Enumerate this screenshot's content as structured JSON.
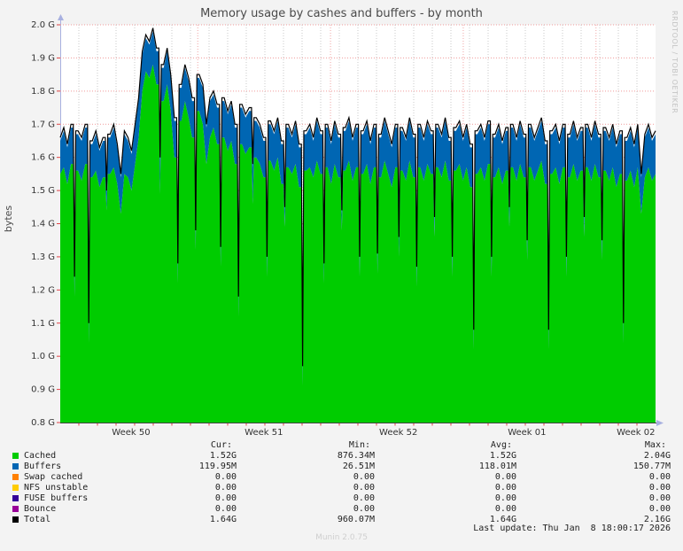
{
  "title": "Memory usage by cashes and buffers - by month",
  "y_axis_label": "bytes",
  "watermark": "RRDTOOL / TOBI OETIKER",
  "footer": "Munin 2.0.75",
  "last_update": "Last update: Thu Jan  8 18:00:17 2026",
  "colors": {
    "background": "#f3f3f3",
    "plot_background": "#ffffff",
    "grid_major_h": "#f09999",
    "grid_minor_v": "#c9c9c9",
    "grid_week_v": "#f0a5a5",
    "axis_tick_red": "#dd4444",
    "axis_bottom": "#444444",
    "axis_arrow": "#a8b0e0",
    "text": "#333333"
  },
  "chart_data": {
    "type": "area",
    "stacked": true,
    "title": "Memory usage by cashes and buffers - by month",
    "xlabel": "",
    "ylabel": "bytes",
    "ylim": [
      0.8,
      2.0
    ],
    "y_unit": "G",
    "y_tick_step": 0.1,
    "y_ticks": [
      "2.0 G",
      "1.9 G",
      "1.8 G",
      "1.7 G",
      "1.6 G",
      "1.5 G",
      "1.4 G",
      "1.3 G",
      "1.2 G",
      "1.1 G",
      "1.0 G",
      "0.9 G",
      "0.8 G"
    ],
    "x_tick_labels": [
      "Week 50",
      "Week 51",
      "Week 52",
      "Week 01",
      "Week 02"
    ],
    "x_tick_positions": [
      0.119,
      0.342,
      0.568,
      0.784,
      0.967
    ],
    "week_grid_positions": [
      0.231,
      0.454,
      0.677,
      0.9
    ],
    "day_divisions": 32,
    "grid": true,
    "legend_position": "bottom",
    "series": [
      {
        "name": "Cached",
        "color": "#00CC00",
        "render": "area",
        "values": [
          1.55,
          1.57,
          1.52,
          1.58,
          1.18,
          1.56,
          1.53,
          1.58,
          1.04,
          1.54,
          1.56,
          1.51,
          1.54,
          1.44,
          1.55,
          1.57,
          1.52,
          1.43,
          1.55,
          1.54,
          1.5,
          1.58,
          1.66,
          1.8,
          1.86,
          1.84,
          1.88,
          1.82,
          1.49,
          1.77,
          1.82,
          1.74,
          1.6,
          1.22,
          1.71,
          1.77,
          1.72,
          1.66,
          1.32,
          1.74,
          1.7,
          1.58,
          1.66,
          1.69,
          1.64,
          1.27,
          1.66,
          1.62,
          1.65,
          1.58,
          1.12,
          1.64,
          1.61,
          1.63,
          1.46,
          1.6,
          1.58,
          1.54,
          1.24,
          1.59,
          1.56,
          1.6,
          1.52,
          1.39,
          1.57,
          1.55,
          1.58,
          1.51,
          0.91,
          1.56,
          1.57,
          1.54,
          1.59,
          1.55,
          1.22,
          1.57,
          1.52,
          1.58,
          1.54,
          1.38,
          1.56,
          1.59,
          1.53,
          1.57,
          1.24,
          1.55,
          1.58,
          1.52,
          1.57,
          1.25,
          1.54,
          1.59,
          1.55,
          1.51,
          1.57,
          1.3,
          1.56,
          1.53,
          1.59,
          1.54,
          1.21,
          1.57,
          1.53,
          1.58,
          1.55,
          1.36,
          1.57,
          1.54,
          1.59,
          1.53,
          1.24,
          1.56,
          1.58,
          1.53,
          1.57,
          1.51,
          1.02,
          1.55,
          1.57,
          1.53,
          1.58,
          1.24,
          1.54,
          1.57,
          1.52,
          1.56,
          1.39,
          1.57,
          1.53,
          1.58,
          1.54,
          1.29,
          1.57,
          1.53,
          1.56,
          1.59,
          1.52,
          1.02,
          1.55,
          1.57,
          1.52,
          1.57,
          1.24,
          1.54,
          1.58,
          1.53,
          1.56,
          1.36,
          1.57,
          1.53,
          1.58,
          1.54,
          1.29,
          1.56,
          1.53,
          1.57,
          1.51,
          1.55,
          1.04,
          1.53,
          1.56,
          1.51,
          1.57,
          1.43,
          1.54,
          1.57,
          1.53,
          1.55
        ]
      },
      {
        "name": "Buffers",
        "color": "#0066B3",
        "render": "area",
        "values": [
          0.1,
          0.11,
          0.11,
          0.11,
          0.05,
          0.11,
          0.12,
          0.11,
          0.05,
          0.1,
          0.11,
          0.11,
          0.11,
          0.05,
          0.11,
          0.12,
          0.11,
          0.11,
          0.12,
          0.11,
          0.11,
          0.11,
          0.11,
          0.11,
          0.1,
          0.1,
          0.1,
          0.1,
          0.1,
          0.1,
          0.1,
          0.1,
          0.11,
          0.05,
          0.1,
          0.1,
          0.11,
          0.11,
          0.05,
          0.1,
          0.11,
          0.11,
          0.11,
          0.1,
          0.11,
          0.05,
          0.11,
          0.11,
          0.11,
          0.11,
          0.05,
          0.11,
          0.11,
          0.11,
          0.11,
          0.11,
          0.11,
          0.11,
          0.05,
          0.11,
          0.11,
          0.11,
          0.12,
          0.05,
          0.12,
          0.11,
          0.12,
          0.12,
          0.05,
          0.11,
          0.12,
          0.11,
          0.12,
          0.12,
          0.05,
          0.12,
          0.12,
          0.12,
          0.12,
          0.05,
          0.12,
          0.12,
          0.12,
          0.12,
          0.05,
          0.12,
          0.12,
          0.12,
          0.12,
          0.05,
          0.12,
          0.12,
          0.12,
          0.12,
          0.12,
          0.05,
          0.12,
          0.12,
          0.12,
          0.12,
          0.05,
          0.12,
          0.12,
          0.12,
          0.12,
          0.05,
          0.12,
          0.12,
          0.12,
          0.12,
          0.05,
          0.12,
          0.12,
          0.12,
          0.12,
          0.12,
          0.05,
          0.12,
          0.12,
          0.12,
          0.12,
          0.05,
          0.12,
          0.12,
          0.12,
          0.12,
          0.05,
          0.12,
          0.12,
          0.12,
          0.12,
          0.05,
          0.12,
          0.12,
          0.12,
          0.12,
          0.12,
          0.05,
          0.12,
          0.12,
          0.12,
          0.12,
          0.05,
          0.12,
          0.12,
          0.12,
          0.12,
          0.05,
          0.12,
          0.12,
          0.12,
          0.12,
          0.05,
          0.12,
          0.12,
          0.12,
          0.12,
          0.12,
          0.05,
          0.12,
          0.12,
          0.12,
          0.12,
          0.11,
          0.12,
          0.12,
          0.12,
          0.12
        ]
      },
      {
        "name": "Swap cached",
        "color": "#FF8000",
        "render": "area",
        "constant": 0.0
      },
      {
        "name": "NFS unstable",
        "color": "#FFCC00",
        "render": "area",
        "constant": 0.0
      },
      {
        "name": "FUSE buffers",
        "color": "#330099",
        "render": "area",
        "constant": 0.0
      },
      {
        "name": "Bounce",
        "color": "#990099",
        "render": "area",
        "constant": 0.0
      },
      {
        "name": "Total",
        "color": "#000000",
        "render": "line",
        "values": [
          1.66,
          1.69,
          1.64,
          1.7,
          1.24,
          1.68,
          1.66,
          1.7,
          1.1,
          1.65,
          1.68,
          1.63,
          1.66,
          1.5,
          1.67,
          1.7,
          1.64,
          1.55,
          1.68,
          1.66,
          1.62,
          1.7,
          1.78,
          1.92,
          1.97,
          1.95,
          1.99,
          1.93,
          1.6,
          1.88,
          1.93,
          1.85,
          1.72,
          1.28,
          1.82,
          1.88,
          1.84,
          1.78,
          1.38,
          1.85,
          1.82,
          1.7,
          1.78,
          1.8,
          1.76,
          1.33,
          1.78,
          1.74,
          1.77,
          1.7,
          1.18,
          1.76,
          1.73,
          1.75,
          1.58,
          1.72,
          1.7,
          1.66,
          1.3,
          1.71,
          1.68,
          1.72,
          1.65,
          1.45,
          1.7,
          1.67,
          1.71,
          1.64,
          0.97,
          1.68,
          1.7,
          1.66,
          1.72,
          1.68,
          1.28,
          1.7,
          1.65,
          1.71,
          1.67,
          1.44,
          1.69,
          1.72,
          1.66,
          1.7,
          1.3,
          1.68,
          1.71,
          1.65,
          1.7,
          1.31,
          1.67,
          1.72,
          1.68,
          1.64,
          1.7,
          1.36,
          1.69,
          1.66,
          1.72,
          1.67,
          1.27,
          1.7,
          1.66,
          1.71,
          1.68,
          1.42,
          1.7,
          1.67,
          1.72,
          1.66,
          1.3,
          1.69,
          1.71,
          1.66,
          1.7,
          1.64,
          1.08,
          1.68,
          1.7,
          1.66,
          1.71,
          1.3,
          1.67,
          1.7,
          1.65,
          1.69,
          1.45,
          1.7,
          1.66,
          1.71,
          1.67,
          1.35,
          1.7,
          1.66,
          1.69,
          1.72,
          1.65,
          1.08,
          1.68,
          1.7,
          1.65,
          1.7,
          1.3,
          1.67,
          1.71,
          1.66,
          1.69,
          1.42,
          1.7,
          1.66,
          1.71,
          1.67,
          1.35,
          1.69,
          1.66,
          1.7,
          1.64,
          1.68,
          1.1,
          1.66,
          1.69,
          1.64,
          1.7,
          1.55,
          1.67,
          1.7,
          1.66,
          1.68
        ]
      }
    ]
  },
  "legend": {
    "headers": [
      "Cur:",
      "Min:",
      "Avg:",
      "Max:"
    ],
    "rows": [
      {
        "label": "Cached",
        "color": "#00CC00",
        "cur": "1.52G",
        "min": "876.34M",
        "avg": "1.52G",
        "max": "2.04G"
      },
      {
        "label": "Buffers",
        "color": "#0066B3",
        "cur": "119.95M",
        "min": "26.51M",
        "avg": "118.01M",
        "max": "150.77M"
      },
      {
        "label": "Swap cached",
        "color": "#FF8000",
        "cur": "0.00",
        "min": "0.00",
        "avg": "0.00",
        "max": "0.00"
      },
      {
        "label": "NFS unstable",
        "color": "#FFCC00",
        "cur": "0.00",
        "min": "0.00",
        "avg": "0.00",
        "max": "0.00"
      },
      {
        "label": "FUSE buffers",
        "color": "#330099",
        "cur": "0.00",
        "min": "0.00",
        "avg": "0.00",
        "max": "0.00"
      },
      {
        "label": "Bounce",
        "color": "#990099",
        "cur": "0.00",
        "min": "0.00",
        "avg": "0.00",
        "max": "0.00"
      },
      {
        "label": "Total",
        "color": "#000000",
        "cur": "1.64G",
        "min": "960.07M",
        "avg": "1.64G",
        "max": "2.16G"
      }
    ]
  }
}
